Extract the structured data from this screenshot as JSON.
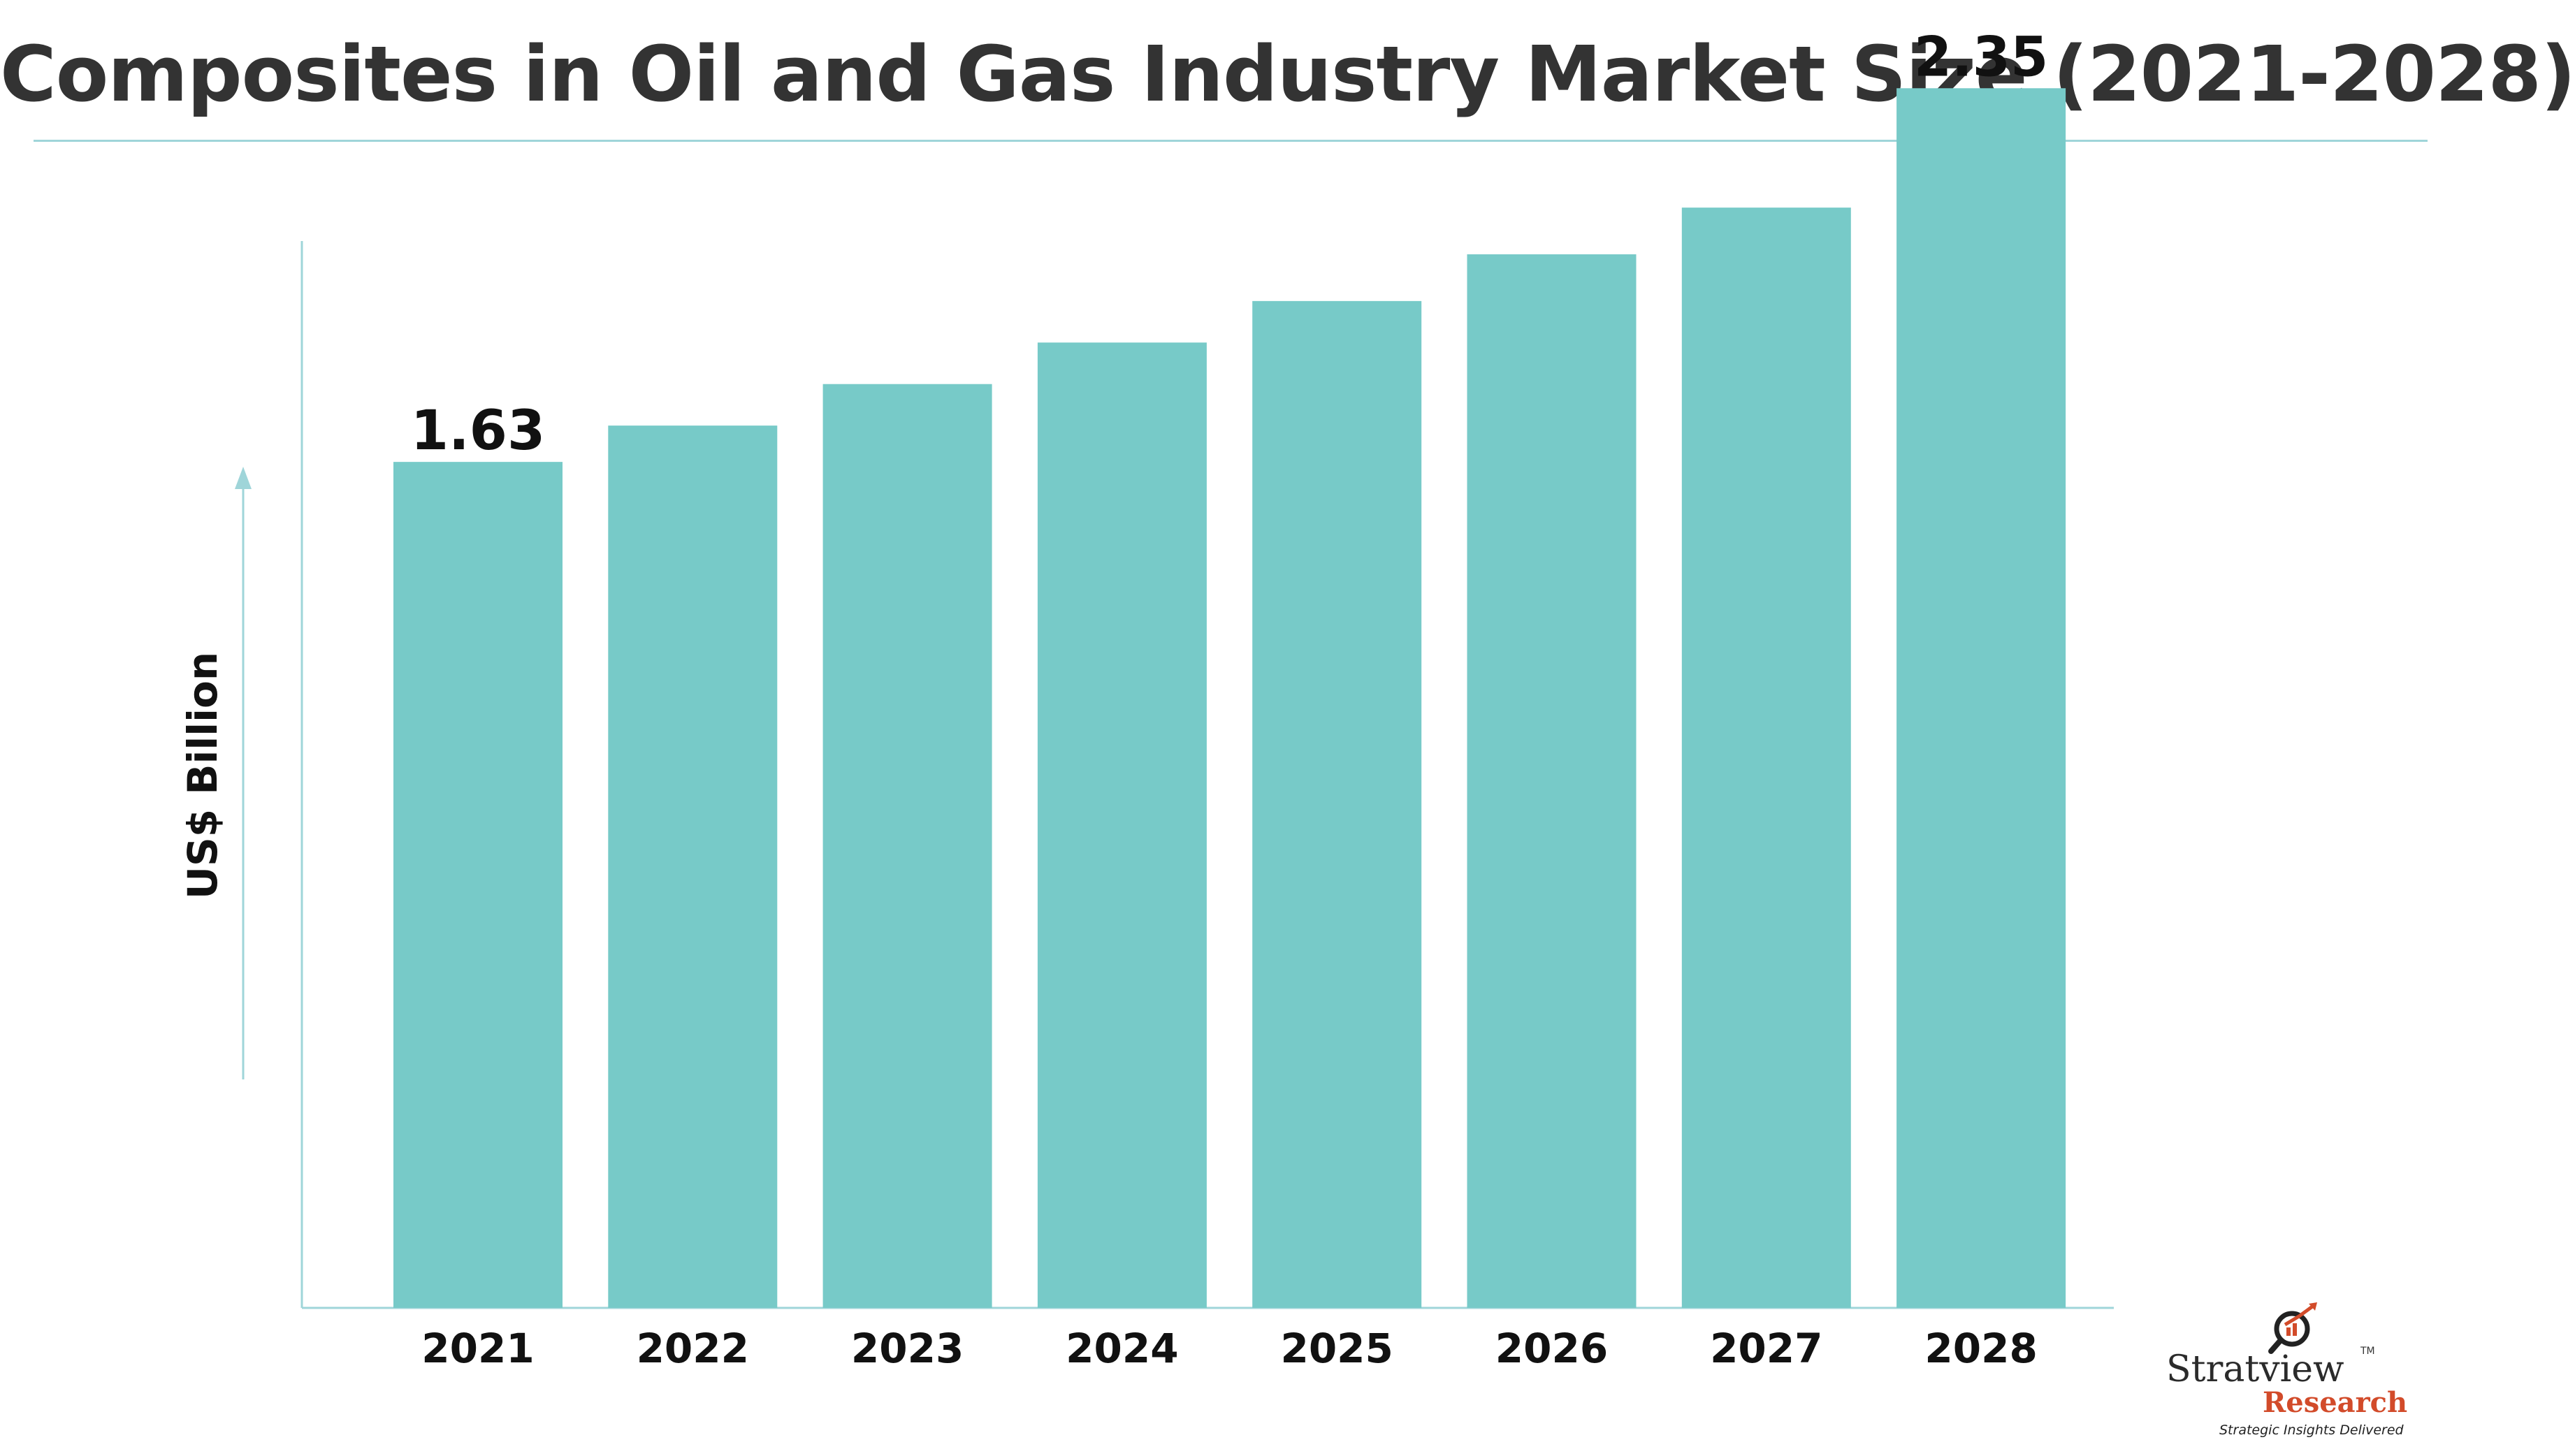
{
  "title": "Composites in Oil and Gas Industry Market Size (2021-2028)",
  "colors": {
    "bar": "#77cac8",
    "axis": "#9fd5d9",
    "title": "#333333"
  },
  "chart_data": {
    "type": "bar",
    "categories": [
      "2021",
      "2022",
      "2023",
      "2024",
      "2025",
      "2026",
      "2027",
      "2028"
    ],
    "values": [
      1.63,
      1.7,
      1.78,
      1.86,
      1.94,
      2.03,
      2.12,
      2.35
    ],
    "data_labels": [
      {
        "index": 0,
        "text": "1.63"
      },
      {
        "index": 7,
        "text": "2.35"
      }
    ],
    "ylabel": "US$ Billion",
    "ylim": [
      0,
      2.45
    ],
    "grid": false,
    "legend": "none"
  },
  "logo": {
    "brand": "Stratview",
    "sub": "Research",
    "tagline": "Strategic Insights Delivered",
    "tm": "TM"
  }
}
